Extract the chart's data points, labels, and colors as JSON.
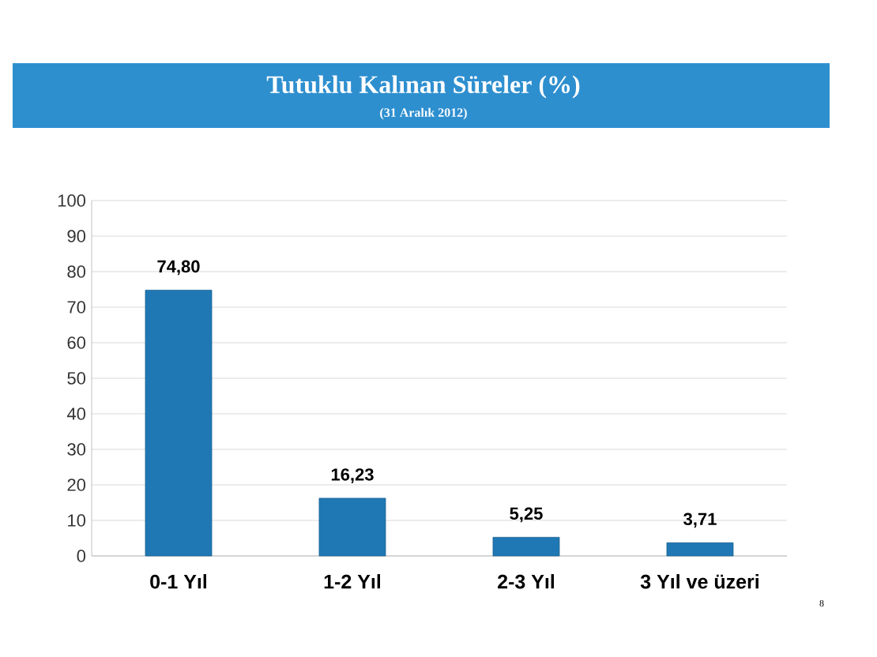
{
  "chart_data": {
    "type": "bar",
    "title": "Tutuklu Kalınan Süreler (%)",
    "subtitle": "(31 Aralık 2012)",
    "categories": [
      "0-1 Yıl",
      "1-2 Yıl",
      "2-3 Yıl",
      "3 Yıl ve üzeri"
    ],
    "values": [
      74.8,
      16.23,
      5.25,
      3.71
    ],
    "value_labels": [
      "74,80",
      "16,23",
      "5,25",
      "3,71"
    ],
    "color": "#1f78b4",
    "ylim": [
      0,
      100
    ],
    "yticks": [
      0,
      10,
      20,
      30,
      40,
      50,
      60,
      70,
      80,
      90,
      100
    ],
    "grid": "y",
    "annotations": [
      "8"
    ]
  }
}
